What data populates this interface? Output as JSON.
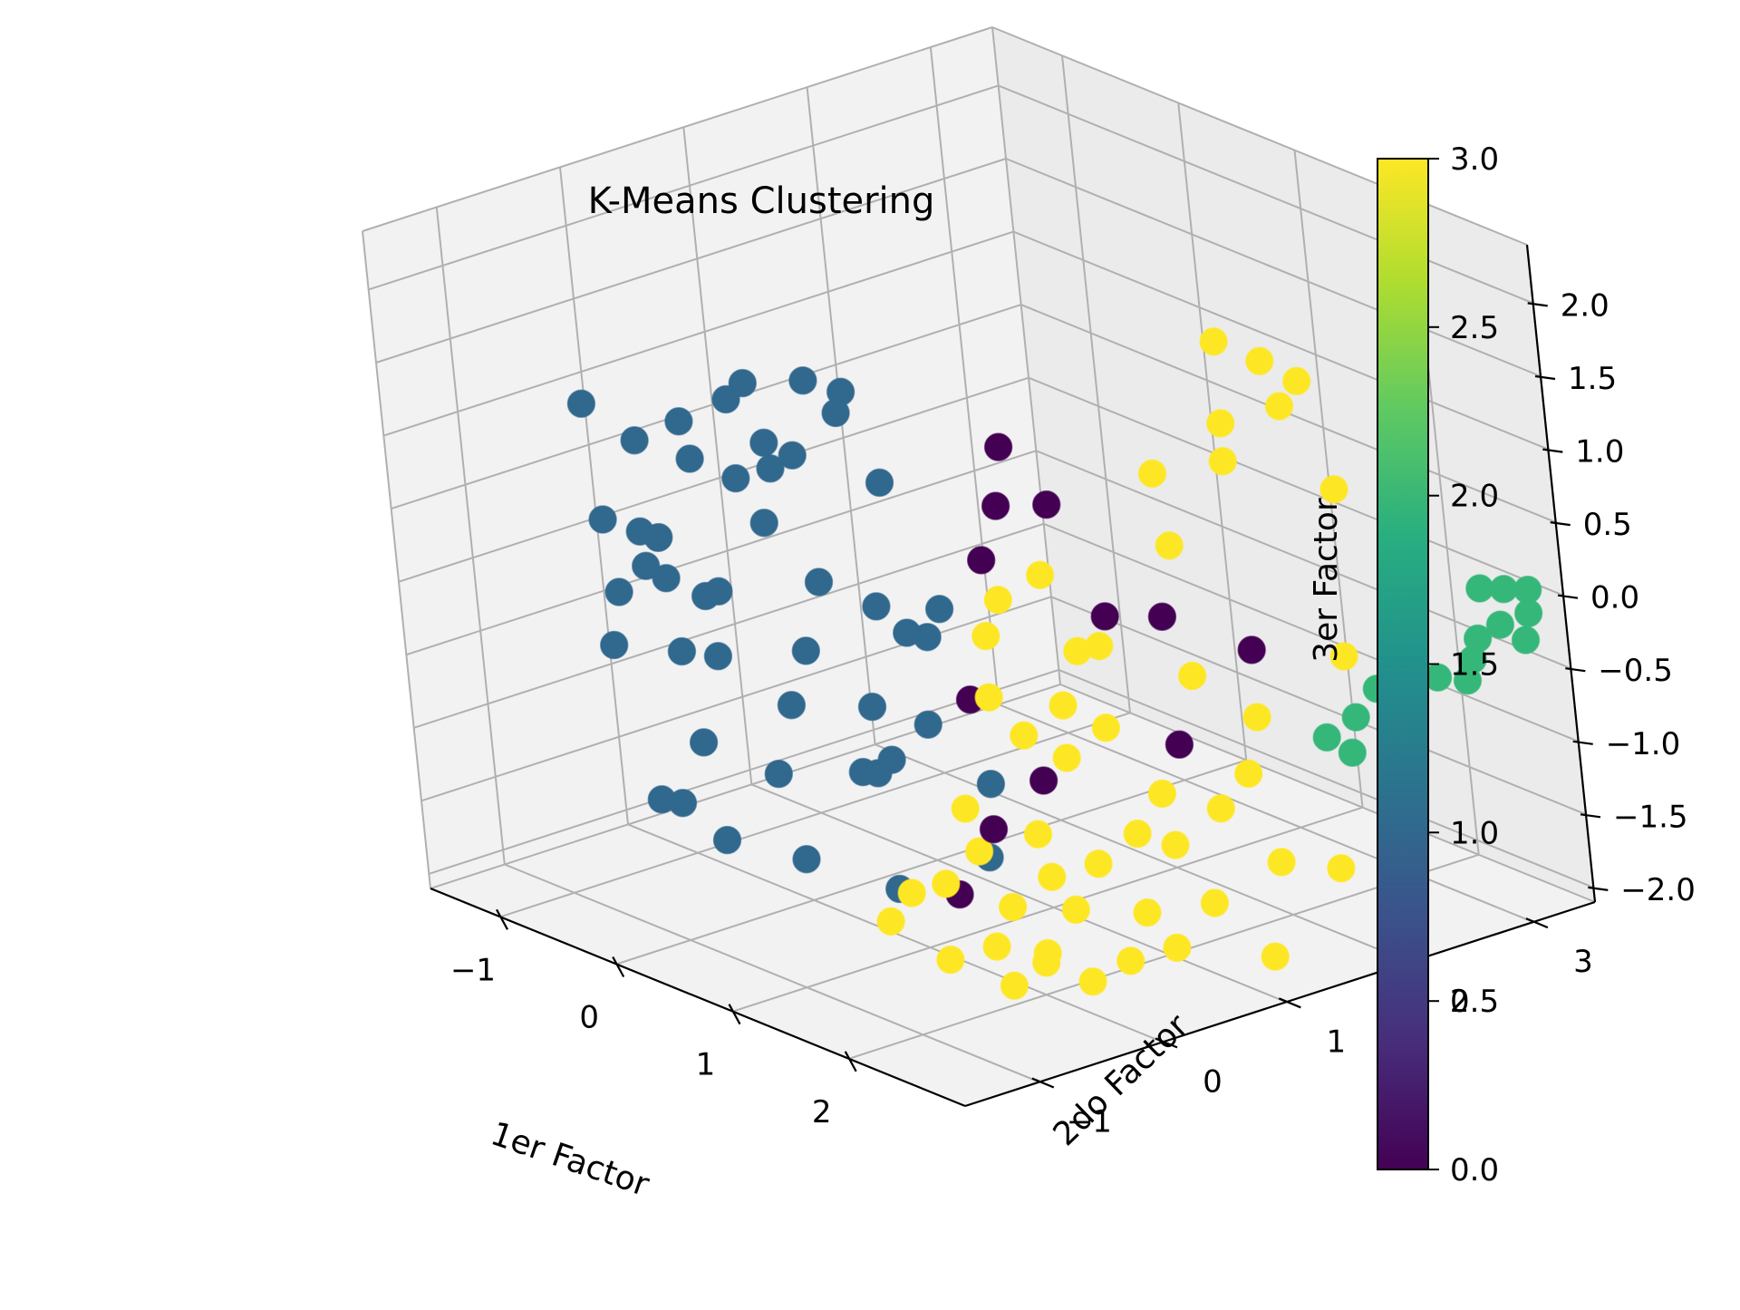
{
  "chart_data": {
    "type": "scatter",
    "projection": "3d",
    "title": "K-Means Clustering",
    "xlabel": "1er Factor",
    "ylabel": "2do Factor",
    "zlabel": "3er Factor",
    "xlim": [
      -1.6,
      3.0
    ],
    "ylim": [
      -1.6,
      3.5
    ],
    "zlim": [
      -2.1,
      2.4
    ],
    "x_ticks": [
      -1,
      0,
      1,
      2
    ],
    "x_tick_labels": [
      "−1",
      "0",
      "1",
      "2"
    ],
    "y_ticks": [
      -1,
      0,
      1,
      2,
      3
    ],
    "y_tick_labels": [
      "−1",
      "0",
      "1",
      "2",
      "3"
    ],
    "z_ticks": [
      -2.0,
      -1.5,
      -1.0,
      -0.5,
      0.0,
      0.5,
      1.0,
      1.5,
      2.0
    ],
    "z_tick_labels": [
      "−2.0",
      "−1.5",
      "−1.0",
      "−0.5",
      "0.0",
      "0.5",
      "1.0",
      "1.5",
      "2.0"
    ],
    "grid": true,
    "colormap": "viridis",
    "cluster_colors": [
      "#440154",
      "#31688e",
      "#35b779",
      "#fde725"
    ],
    "colorbar": {
      "range": [
        0.0,
        3.0
      ],
      "ticks": [
        0.0,
        0.5,
        1.0,
        1.5,
        2.0,
        2.5,
        3.0
      ],
      "tick_labels": [
        "0.0",
        "0.5",
        "1.0",
        "1.5",
        "2.0",
        "2.5",
        "3.0"
      ],
      "stops": [
        "#440154",
        "#472d7b",
        "#3b528b",
        "#2c728e",
        "#21918c",
        "#28ae80",
        "#5ec962",
        "#addc30",
        "#fde725"
      ]
    },
    "series": [
      {
        "cluster": 1,
        "points": [
          [
            -1.4,
            -0.2,
            0.9
          ],
          [
            -1.3,
            0.1,
            0.6
          ],
          [
            -1.2,
            -0.3,
            0.2
          ],
          [
            -1.45,
            0.2,
            -0.1
          ],
          [
            -1.35,
            -0.1,
            -0.4
          ],
          [
            -1.2,
            0.0,
            -0.2
          ],
          [
            -1.05,
            0.3,
            0.5
          ],
          [
            -1.0,
            0.2,
            0.8
          ],
          [
            -0.9,
            0.5,
            0.9
          ],
          [
            -1.1,
            -0.4,
            -0.6
          ],
          [
            -1.3,
            0.3,
            -0.9
          ],
          [
            -1.0,
            0.6,
            0.3
          ],
          [
            -0.9,
            0.7,
            0.0
          ],
          [
            -0.8,
            0.2,
            -0.3
          ],
          [
            -0.7,
            0.8,
            0.5
          ],
          [
            -0.65,
            0.9,
            1.0
          ],
          [
            -0.6,
            0.5,
            0.7
          ],
          [
            -0.5,
            1.0,
            0.8
          ],
          [
            -0.4,
            1.2,
            0.3
          ],
          [
            -0.35,
            0.6,
            -0.2
          ],
          [
            -0.3,
            0.4,
            -0.6
          ],
          [
            -0.2,
            0.9,
            -0.4
          ],
          [
            -0.25,
            0.2,
            -0.9
          ],
          [
            -0.1,
            0.7,
            -1.0
          ],
          [
            0.0,
            1.1,
            -0.6
          ],
          [
            -0.5,
            -0.3,
            -1.1
          ],
          [
            -0.7,
            -0.5,
            -1.5
          ],
          [
            -0.4,
            -0.6,
            -1.4
          ],
          [
            -0.2,
            0.0,
            -1.3
          ],
          [
            0.1,
            0.4,
            -1.3
          ],
          [
            -0.15,
            -0.5,
            -1.6
          ],
          [
            0.2,
            -0.2,
            -1.7
          ],
          [
            0.35,
            0.3,
            -1.2
          ],
          [
            0.5,
            0.6,
            -0.9
          ],
          [
            0.6,
            0.2,
            -1.0
          ],
          [
            -0.8,
            -0.2,
            -0.1
          ],
          [
            -0.6,
            -0.4,
            0.3
          ],
          [
            -0.95,
            -0.1,
            0.1
          ],
          [
            0.05,
            0.9,
            -0.5
          ],
          [
            -0.45,
            0.4,
            0.6
          ],
          [
            -0.75,
            0.1,
            -0.7
          ],
          [
            -1.15,
            0.4,
            -0.5
          ],
          [
            0.55,
            1.0,
            -1.4
          ],
          [
            0.55,
            0.2,
            -1.9
          ],
          [
            0.7,
            0.8,
            -1.8
          ],
          [
            -0.55,
            1.1,
            0.9
          ],
          [
            0.25,
            1.0,
            -0.3
          ],
          [
            -0.85,
            0.6,
            1.0
          ]
        ]
      },
      {
        "cluster": 0,
        "points": [
          [
            0.7,
            1.2,
            0.9
          ],
          [
            0.85,
            1.0,
            0.6
          ],
          [
            0.9,
            0.8,
            0.3
          ],
          [
            0.9,
            0.6,
            -0.6
          ],
          [
            1.5,
            1.2,
            0.0
          ],
          [
            1.6,
            0.5,
            -0.9
          ],
          [
            1.9,
            1.3,
            0.1
          ],
          [
            2.05,
            1.2,
            -0.7
          ],
          [
            2.1,
            1.8,
            -0.2
          ],
          [
            1.45,
            0.2,
            -1.2
          ],
          [
            1.2,
            0.1,
            -1.7
          ],
          [
            0.85,
            1.4,
            0.5
          ]
        ]
      },
      {
        "cluster": 3,
        "points": [
          [
            1.7,
            2.1,
            1.7
          ],
          [
            1.75,
            2.4,
            1.5
          ],
          [
            1.8,
            2.0,
            1.2
          ],
          [
            1.95,
            2.5,
            1.4
          ],
          [
            2.0,
            2.3,
            1.3
          ],
          [
            1.6,
            1.6,
            0.9
          ],
          [
            1.9,
            1.9,
            1.0
          ],
          [
            2.3,
            2.4,
            0.8
          ],
          [
            1.8,
            1.5,
            0.5
          ],
          [
            0.9,
            0.9,
            0.0
          ],
          [
            1.1,
            0.6,
            -0.1
          ],
          [
            1.3,
            0.9,
            0.3
          ],
          [
            1.45,
            1.0,
            -0.2
          ],
          [
            1.5,
            0.8,
            -0.5
          ],
          [
            1.3,
            0.4,
            -0.4
          ],
          [
            1.35,
            0.6,
            -0.7
          ],
          [
            1.6,
            0.7,
            -0.8
          ],
          [
            1.75,
            0.9,
            -0.6
          ],
          [
            2.0,
            1.4,
            -0.3
          ],
          [
            2.2,
            1.7,
            -0.6
          ],
          [
            2.3,
            1.5,
            -0.9
          ],
          [
            1.85,
            1.2,
            -1.1
          ],
          [
            1.5,
            0.5,
            -1.3
          ],
          [
            1.3,
            0.2,
            -1.4
          ],
          [
            1.2,
            0.0,
            -1.6
          ],
          [
            1.55,
            0.2,
            -1.7
          ],
          [
            1.7,
            0.4,
            -1.5
          ],
          [
            1.9,
            0.6,
            -1.4
          ],
          [
            2.05,
            0.8,
            -1.2
          ],
          [
            2.15,
            1.0,
            -1.3
          ],
          [
            2.25,
            1.3,
            -1.1
          ],
          [
            1.95,
            0.9,
            -1.8
          ],
          [
            2.4,
            1.6,
            -1.5
          ],
          [
            0.9,
            -0.2,
            -1.9
          ],
          [
            1.0,
            -0.1,
            -1.7
          ],
          [
            1.4,
            -0.2,
            -2.0
          ],
          [
            1.6,
            0.0,
            -1.9
          ],
          [
            1.8,
            0.2,
            -2.0
          ],
          [
            2.0,
            0.3,
            -1.6
          ],
          [
            2.1,
            0.6,
            -2.0
          ],
          [
            2.3,
            0.8,
            -1.9
          ],
          [
            2.45,
            1.0,
            -1.6
          ],
          [
            1.95,
            -0.2,
            -2.0
          ],
          [
            2.05,
            0.0,
            -1.8
          ],
          [
            2.2,
            0.2,
            -2.0
          ],
          [
            2.6,
            1.3,
            -2.0
          ],
          [
            1.1,
            0.3,
            -1.2
          ],
          [
            1.65,
            1.0,
            -0.1
          ],
          [
            2.35,
            2.3,
            -0.3
          ],
          [
            2.7,
            1.8,
            -1.5
          ]
        ]
      },
      {
        "cluster": 2,
        "points": [
          [
            2.6,
            3.2,
            0.0
          ],
          [
            2.7,
            3.3,
            0.0
          ],
          [
            2.75,
            3.2,
            -0.2
          ],
          [
            2.8,
            3.4,
            0.0
          ],
          [
            2.65,
            3.1,
            -0.3
          ],
          [
            2.7,
            3.0,
            -0.4
          ],
          [
            2.85,
            3.3,
            -0.3
          ],
          [
            2.6,
            2.8,
            -0.5
          ],
          [
            2.55,
            2.5,
            -0.6
          ],
          [
            2.4,
            2.3,
            -0.7
          ],
          [
            2.45,
            2.2,
            -0.9
          ],
          [
            2.35,
            2.1,
            -0.8
          ],
          [
            2.5,
            2.4,
            -0.5
          ],
          [
            2.9,
            3.3,
            -0.1
          ],
          [
            2.75,
            2.9,
            -0.5
          ]
        ]
      }
    ]
  }
}
